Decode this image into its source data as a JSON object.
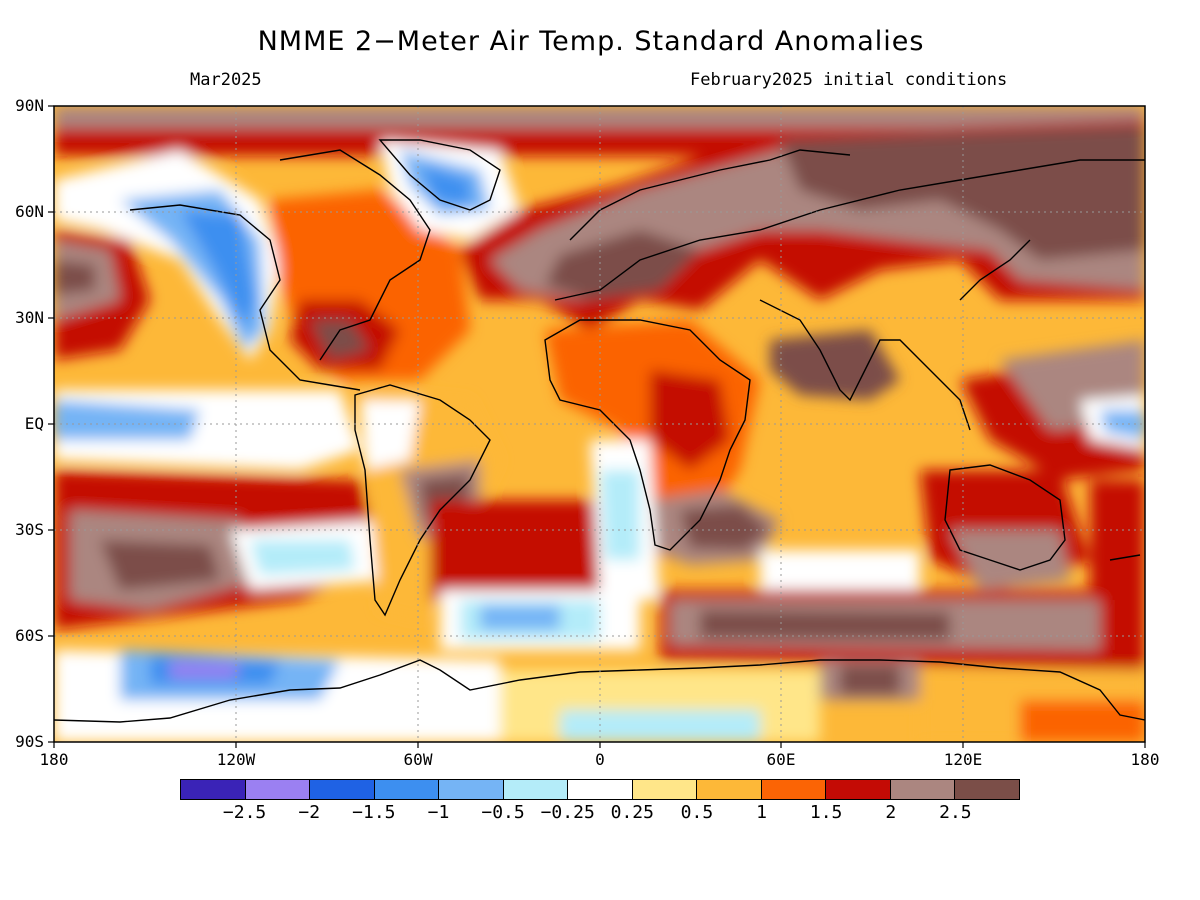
{
  "title": "NMME 2−Meter Air Temp. Standard Anomalies",
  "subtitle_left": "Mar2025",
  "subtitle_right": "February2025 initial conditions",
  "lat_labels": [
    "90N",
    "60N",
    "30N",
    "EQ",
    "30S",
    "60S",
    "90S"
  ],
  "lon_labels": [
    "180",
    "120W",
    "60W",
    "0",
    "60E",
    "120E",
    "180"
  ],
  "colorbar": {
    "colors": [
      "#3a23b7",
      "#9b80f2",
      "#1f62e4",
      "#3d8ff0",
      "#75b4f5",
      "#b4ecf9",
      "#ffffff",
      "#ffe689",
      "#fdb838",
      "#fb6405",
      "#c40b05",
      "#ab8680",
      "#7b4e48"
    ],
    "labels": [
      "−2.5",
      "−2",
      "−1.5",
      "−1",
      "−0.5",
      "−0.25",
      "0.25",
      "0.5",
      "1",
      "1.5",
      "2",
      "2.5"
    ]
  }
}
